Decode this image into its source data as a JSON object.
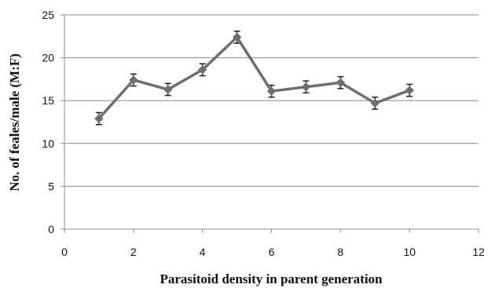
{
  "chart_data": {
    "type": "line",
    "title": "",
    "xlabel": "Parasitoid density in parent generation",
    "ylabel": "No. of feales/male (M:F)",
    "xlim": [
      0,
      12
    ],
    "ylim": [
      0,
      25
    ],
    "x_ticks": [
      "0",
      "2",
      "4",
      "6",
      "8",
      "10",
      "12"
    ],
    "y_ticks": [
      "0",
      "5",
      "10",
      "15",
      "20",
      "25"
    ],
    "grid": "horizontal",
    "legend": "none",
    "series": [
      {
        "color": "#6e6e6e",
        "marker": "diamond",
        "x": [
          1,
          2,
          3,
          4,
          5,
          6,
          7,
          8,
          9,
          10
        ],
        "y": [
          12.9,
          17.4,
          16.3,
          18.6,
          22.4,
          16.1,
          16.6,
          17.1,
          14.7,
          16.2
        ],
        "error": [
          0.7,
          0.7,
          0.7,
          0.7,
          0.7,
          0.7,
          0.7,
          0.7,
          0.7,
          0.7
        ]
      }
    ]
  }
}
